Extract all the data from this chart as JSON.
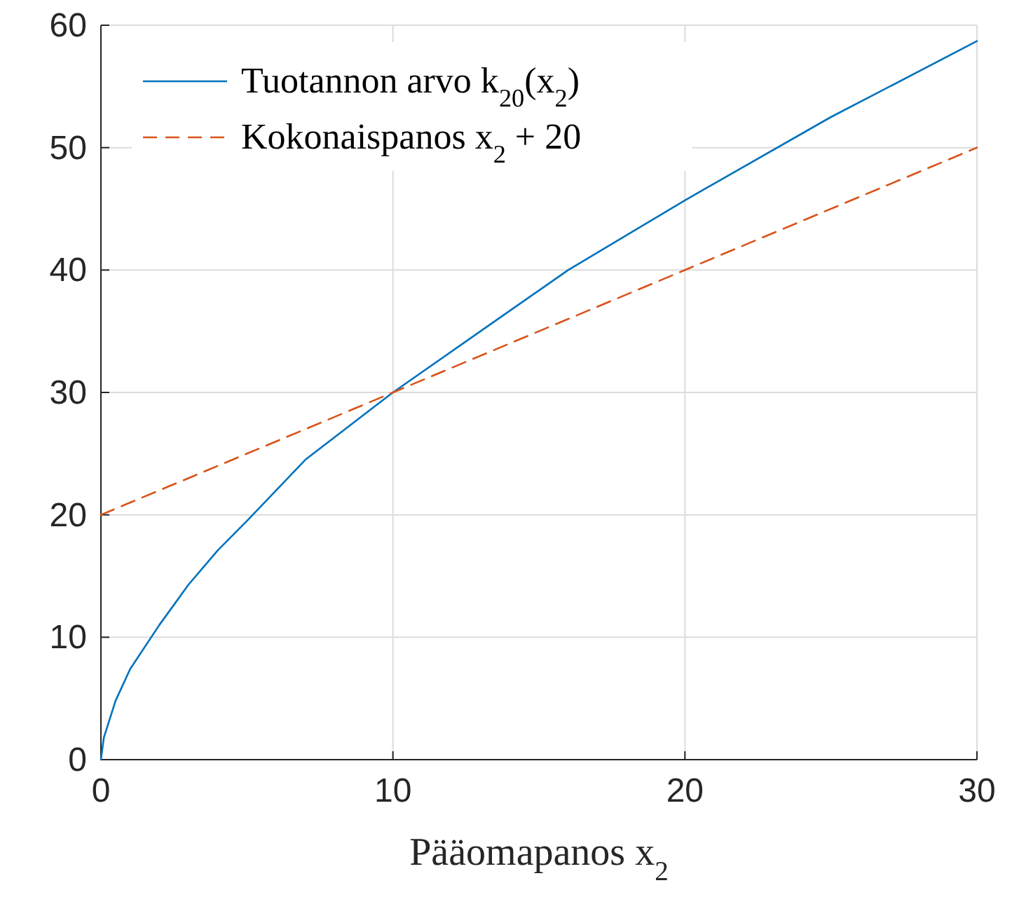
{
  "chart_data": {
    "type": "line",
    "xlabel": "Pääomapanos x$_{2}$",
    "xlim": [
      0,
      30
    ],
    "xticks": [
      0,
      10,
      20,
      30
    ],
    "ylim": [
      0,
      60
    ],
    "yticks": [
      0,
      10,
      20,
      30,
      40,
      50,
      60
    ],
    "grid": true,
    "legend": "top left",
    "series": [
      {
        "name": "Tuotannon arvo k$_{20}$(x$_{2}$)",
        "color": "#0072bd",
        "line_style": "solid",
        "x": [
          0,
          0.1,
          0.5,
          1,
          2,
          3,
          4,
          5,
          7,
          10,
          13,
          16,
          20,
          25,
          30
        ],
        "values": [
          0,
          1.8,
          4.8,
          7.4,
          11,
          14.3,
          17.1,
          19.5,
          24.5,
          30,
          35,
          40,
          45.7,
          52.5,
          58.7
        ]
      },
      {
        "name": "Kokonaispanos x$_{2}$ + 20",
        "color": "#d95319",
        "line_style": "dashed",
        "x": [
          0,
          30
        ],
        "values": [
          20,
          50
        ]
      }
    ]
  }
}
